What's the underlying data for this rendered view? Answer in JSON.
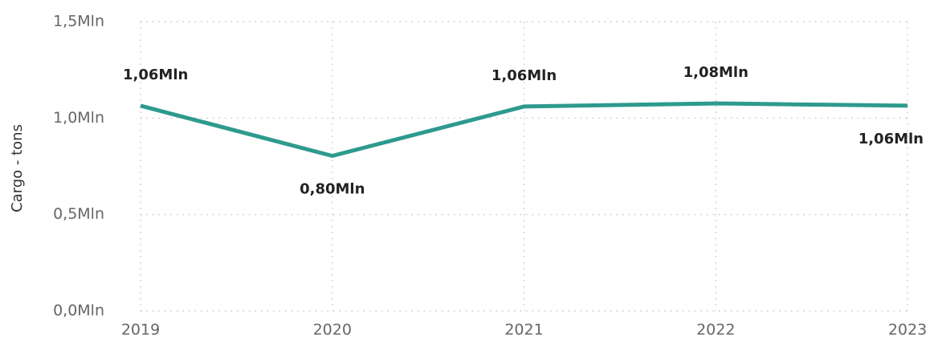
{
  "chart_data": {
    "type": "line",
    "y_label": "Cargo - tons",
    "x": [
      2019,
      2020,
      2021,
      2022,
      2023
    ],
    "xlim": [
      2019,
      2023
    ],
    "xticks": [
      2019,
      2020,
      2021,
      2022,
      2023
    ],
    "ylim": [
      0,
      1500000
    ],
    "yticks": [
      {
        "value": 0,
        "label": "0,0Mln"
      },
      {
        "value": 500000,
        "label": "0,5Mln"
      },
      {
        "value": 1000000,
        "label": "1,0Mln"
      },
      {
        "value": 1500000,
        "label": "1,5Mln"
      }
    ],
    "grid": true,
    "series": [
      {
        "name": "Cargo - tons",
        "color": "#2e9a8e",
        "values": [
          1064000,
          804000,
          1060000,
          1076000,
          1064000
        ],
        "value_labels": [
          "1,06Mln",
          "0,80Mln",
          "1,06Mln",
          "1,08Mln",
          "1,06Mln"
        ]
      }
    ]
  }
}
